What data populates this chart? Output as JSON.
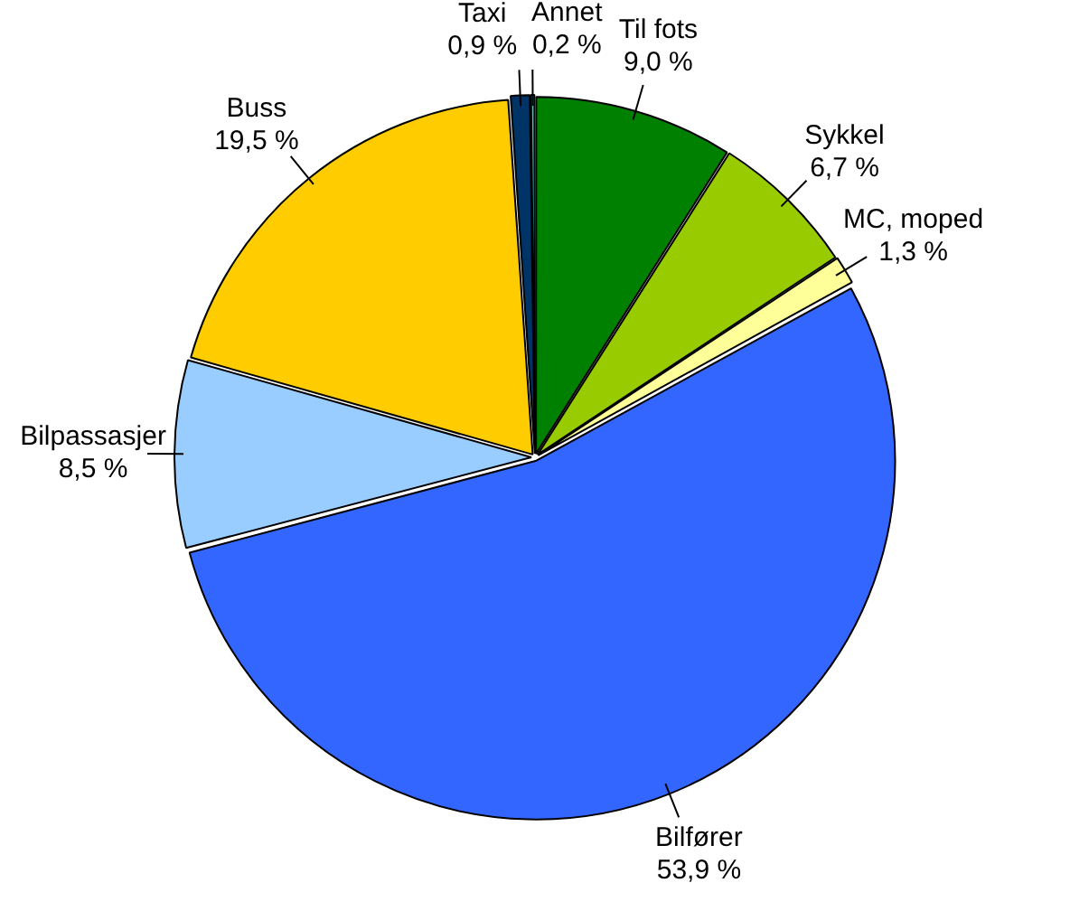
{
  "chart_data": {
    "type": "pie",
    "categories": [
      "Til fots",
      "Sykkel",
      "MC, moped",
      "Bilfører",
      "Bilpassasjer",
      "Buss",
      "Taxi",
      "Annet"
    ],
    "values": [
      9.0,
      6.7,
      1.3,
      53.9,
      8.5,
      19.5,
      0.9,
      0.2
    ],
    "value_labels": [
      "9,0 %",
      "6,7 %",
      "1,3 %",
      "53,9 %",
      "8,5 %",
      "19,5 %",
      "0,9 %",
      "0,2 %"
    ],
    "colors": [
      "#008000",
      "#99cc00",
      "#ffff99",
      "#3366ff",
      "#99ccff",
      "#ffcc00",
      "#003366",
      "#33cccc"
    ],
    "legend": false
  }
}
